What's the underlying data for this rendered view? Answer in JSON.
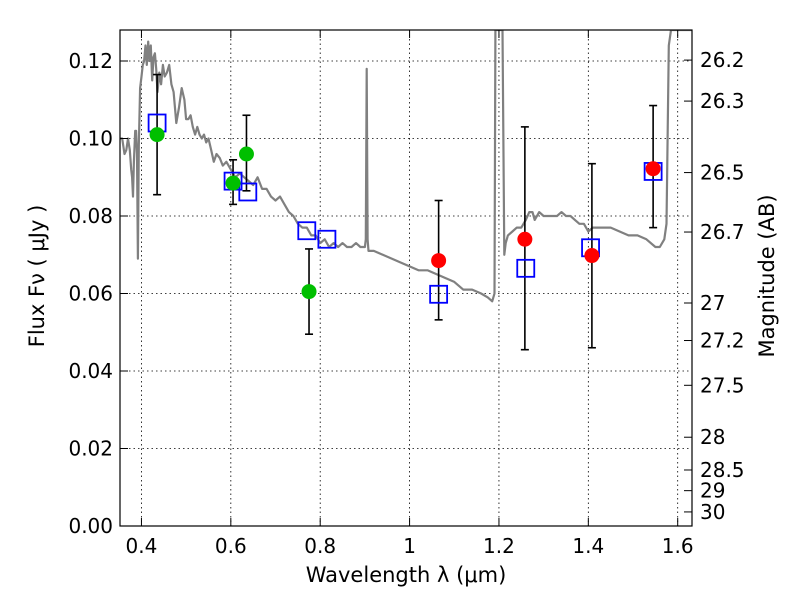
{
  "chart_data": {
    "type": "scatter",
    "xlabel": "Wavelength  λ (μm)",
    "ylabel": "Flux  Fν  ( μJy )",
    "y2label": "Magnitude (AB)",
    "xlim": [
      0.352,
      1.632
    ],
    "ylim": [
      0.0,
      0.128
    ],
    "grid": true,
    "x_ticks": [
      {
        "value": 0.4,
        "label": "0.4"
      },
      {
        "value": 0.6,
        "label": "0.6"
      },
      {
        "value": 0.8,
        "label": "0.8"
      },
      {
        "value": 1.0,
        "label": "1"
      },
      {
        "value": 1.2,
        "label": "1.2"
      },
      {
        "value": 1.4,
        "label": "1.4"
      },
      {
        "value": 1.6,
        "label": "1.6"
      }
    ],
    "y_ticks": [
      {
        "value": 0.0,
        "label": "0.00"
      },
      {
        "value": 0.02,
        "label": "0.02"
      },
      {
        "value": 0.04,
        "label": "0.04"
      },
      {
        "value": 0.06,
        "label": "0.06"
      },
      {
        "value": 0.08,
        "label": "0.08"
      },
      {
        "value": 0.1,
        "label": "0.10"
      },
      {
        "value": 0.12,
        "label": "0.12"
      }
    ],
    "mag_ticks": [
      {
        "value": 26.2,
        "label": "26.2"
      },
      {
        "value": 26.3,
        "label": "26.3"
      },
      {
        "value": 26.5,
        "label": "26.5"
      },
      {
        "value": 26.7,
        "label": "26.7"
      },
      {
        "value": 27.0,
        "label": "27"
      },
      {
        "value": 27.2,
        "label": "27.2"
      },
      {
        "value": 27.5,
        "label": "27.5"
      },
      {
        "value": 28.0,
        "label": "28"
      },
      {
        "value": 28.5,
        "label": "28.5"
      },
      {
        "value": 29.0,
        "label": "29"
      },
      {
        "value": 30.0,
        "label": "30"
      }
    ],
    "model_spectrum": {
      "color": "#808080",
      "points": [
        [
          0.352,
          0.1
        ],
        [
          0.357,
          0.1
        ],
        [
          0.362,
          0.096
        ],
        [
          0.366,
          0.097
        ],
        [
          0.37,
          0.1
        ],
        [
          0.374,
          0.097
        ],
        [
          0.377,
          0.092
        ],
        [
          0.379,
          0.09
        ],
        [
          0.381,
          0.085
        ],
        [
          0.383,
          0.094
        ],
        [
          0.386,
          0.102
        ],
        [
          0.388,
          0.102
        ],
        [
          0.39,
          0.096
        ],
        [
          0.392,
          0.069
        ],
        [
          0.394,
          0.098
        ],
        [
          0.397,
          0.113
        ],
        [
          0.4,
          0.116
        ],
        [
          0.403,
          0.119
        ],
        [
          0.406,
          0.12
        ],
        [
          0.409,
          0.124
        ],
        [
          0.412,
          0.119
        ],
        [
          0.415,
          0.125
        ],
        [
          0.418,
          0.12
        ],
        [
          0.421,
          0.124
        ],
        [
          0.424,
          0.115
        ],
        [
          0.427,
          0.121
        ],
        [
          0.43,
          0.122
        ],
        [
          0.433,
          0.118
        ],
        [
          0.436,
          0.112
        ],
        [
          0.44,
          0.117
        ],
        [
          0.444,
          0.114
        ],
        [
          0.448,
          0.119
        ],
        [
          0.452,
          0.116
        ],
        [
          0.457,
          0.117
        ],
        [
          0.462,
          0.119
        ],
        [
          0.467,
          0.114
        ],
        [
          0.472,
          0.112
        ],
        [
          0.478,
          0.104
        ],
        [
          0.484,
          0.108
        ],
        [
          0.49,
          0.113
        ],
        [
          0.496,
          0.11
        ],
        [
          0.5,
          0.105
        ],
        [
          0.505,
          0.105
        ],
        [
          0.51,
          0.106
        ],
        [
          0.515,
          0.103
        ],
        [
          0.52,
          0.101
        ],
        [
          0.525,
          0.103
        ],
        [
          0.53,
          0.101
        ],
        [
          0.535,
          0.1
        ],
        [
          0.54,
          0.101
        ],
        [
          0.545,
          0.099
        ],
        [
          0.55,
          0.1
        ],
        [
          0.556,
          0.097
        ],
        [
          0.562,
          0.094
        ],
        [
          0.568,
          0.096
        ],
        [
          0.575,
          0.095
        ],
        [
          0.582,
          0.093
        ],
        [
          0.59,
          0.094
        ],
        [
          0.6,
          0.092
        ],
        [
          0.61,
          0.09
        ],
        [
          0.62,
          0.091
        ],
        [
          0.63,
          0.09
        ],
        [
          0.64,
          0.089
        ],
        [
          0.65,
          0.088
        ],
        [
          0.66,
          0.09
        ],
        [
          0.67,
          0.087
        ],
        [
          0.68,
          0.087
        ],
        [
          0.69,
          0.085
        ],
        [
          0.7,
          0.084
        ],
        [
          0.71,
          0.085
        ],
        [
          0.72,
          0.083
        ],
        [
          0.73,
          0.081
        ],
        [
          0.74,
          0.08
        ],
        [
          0.75,
          0.078
        ],
        [
          0.76,
          0.077
        ],
        [
          0.77,
          0.077
        ],
        [
          0.78,
          0.075
        ],
        [
          0.79,
          0.075
        ],
        [
          0.8,
          0.073
        ],
        [
          0.81,
          0.074
        ],
        [
          0.82,
          0.072
        ],
        [
          0.83,
          0.073
        ],
        [
          0.84,
          0.072
        ],
        [
          0.85,
          0.073
        ],
        [
          0.86,
          0.072
        ],
        [
          0.87,
          0.072
        ],
        [
          0.88,
          0.073
        ],
        [
          0.89,
          0.072
        ],
        [
          0.9,
          0.072
        ],
        [
          0.902,
          0.074
        ],
        [
          0.904,
          0.118
        ],
        [
          0.906,
          0.074
        ],
        [
          0.908,
          0.071
        ],
        [
          0.92,
          0.071
        ],
        [
          0.94,
          0.07
        ],
        [
          0.96,
          0.069
        ],
        [
          0.98,
          0.068
        ],
        [
          1.0,
          0.067
        ],
        [
          1.02,
          0.066
        ],
        [
          1.04,
          0.066
        ],
        [
          1.06,
          0.065
        ],
        [
          1.08,
          0.064
        ],
        [
          1.1,
          0.063
        ],
        [
          1.12,
          0.061
        ],
        [
          1.14,
          0.061
        ],
        [
          1.16,
          0.06
        ],
        [
          1.175,
          0.059
        ],
        [
          1.185,
          0.058
        ],
        [
          1.19,
          0.06
        ],
        [
          1.192,
          0.128
        ],
        [
          1.208,
          0.128
        ],
        [
          1.212,
          0.07
        ],
        [
          1.215,
          0.073
        ],
        [
          1.22,
          0.075
        ],
        [
          1.23,
          0.076
        ],
        [
          1.24,
          0.077
        ],
        [
          1.25,
          0.077
        ],
        [
          1.26,
          0.079
        ],
        [
          1.268,
          0.081
        ],
        [
          1.275,
          0.081
        ],
        [
          1.28,
          0.079
        ],
        [
          1.29,
          0.081
        ],
        [
          1.3,
          0.08
        ],
        [
          1.31,
          0.08
        ],
        [
          1.32,
          0.08
        ],
        [
          1.33,
          0.08
        ],
        [
          1.34,
          0.081
        ],
        [
          1.35,
          0.08
        ],
        [
          1.36,
          0.08
        ],
        [
          1.37,
          0.079
        ],
        [
          1.38,
          0.078
        ],
        [
          1.39,
          0.078
        ],
        [
          1.4,
          0.076
        ],
        [
          1.41,
          0.077
        ],
        [
          1.42,
          0.077
        ],
        [
          1.43,
          0.077
        ],
        [
          1.44,
          0.077
        ],
        [
          1.45,
          0.077
        ],
        [
          1.47,
          0.076
        ],
        [
          1.49,
          0.075
        ],
        [
          1.51,
          0.075
        ],
        [
          1.53,
          0.074
        ],
        [
          1.55,
          0.072
        ],
        [
          1.56,
          0.072
        ],
        [
          1.57,
          0.074
        ],
        [
          1.575,
          0.078
        ],
        [
          1.58,
          0.124
        ],
        [
          1.585,
          0.128
        ],
        [
          1.6,
          0.128
        ],
        [
          1.632,
          0.128
        ]
      ]
    },
    "series": [
      {
        "marker": "circle",
        "color": "#00bf00",
        "points": [
          {
            "x": 0.435,
            "y": 0.101
          },
          {
            "x": 0.605,
            "y": 0.0885
          },
          {
            "x": 0.635,
            "y": 0.096
          },
          {
            "x": 0.775,
            "y": 0.0605
          }
        ]
      },
      {
        "marker": "circle",
        "color": "#ff0000",
        "points": [
          {
            "x": 1.065,
            "y": 0.0685
          },
          {
            "x": 1.258,
            "y": 0.074
          },
          {
            "x": 1.408,
            "y": 0.0698
          },
          {
            "x": 1.545,
            "y": 0.0922
          }
        ]
      },
      {
        "marker": "square",
        "color": "#0000ff",
        "points": [
          {
            "x": 0.435,
            "y": 0.104
          },
          {
            "x": 0.605,
            "y": 0.089
          },
          {
            "x": 0.638,
            "y": 0.0862
          },
          {
            "x": 0.77,
            "y": 0.0762
          },
          {
            "x": 0.815,
            "y": 0.074
          },
          {
            "x": 1.065,
            "y": 0.0598
          },
          {
            "x": 1.26,
            "y": 0.0665
          },
          {
            "x": 1.405,
            "y": 0.0718
          },
          {
            "x": 1.545,
            "y": 0.0915
          }
        ]
      }
    ],
    "error_bars": [
      {
        "x": 0.435,
        "low": 0.0855,
        "high": 0.1165
      },
      {
        "x": 0.605,
        "low": 0.083,
        "high": 0.0945
      },
      {
        "x": 0.635,
        "low": 0.0865,
        "high": 0.106
      },
      {
        "x": 0.775,
        "low": 0.0495,
        "high": 0.0715
      },
      {
        "x": 1.065,
        "low": 0.0532,
        "high": 0.084
      },
      {
        "x": 1.258,
        "low": 0.0455,
        "high": 0.103
      },
      {
        "x": 1.408,
        "low": 0.046,
        "high": 0.0935
      },
      {
        "x": 1.545,
        "low": 0.077,
        "high": 0.1085
      }
    ],
    "colors": {
      "errorbar": "#000000",
      "frame": "#000000"
    }
  }
}
